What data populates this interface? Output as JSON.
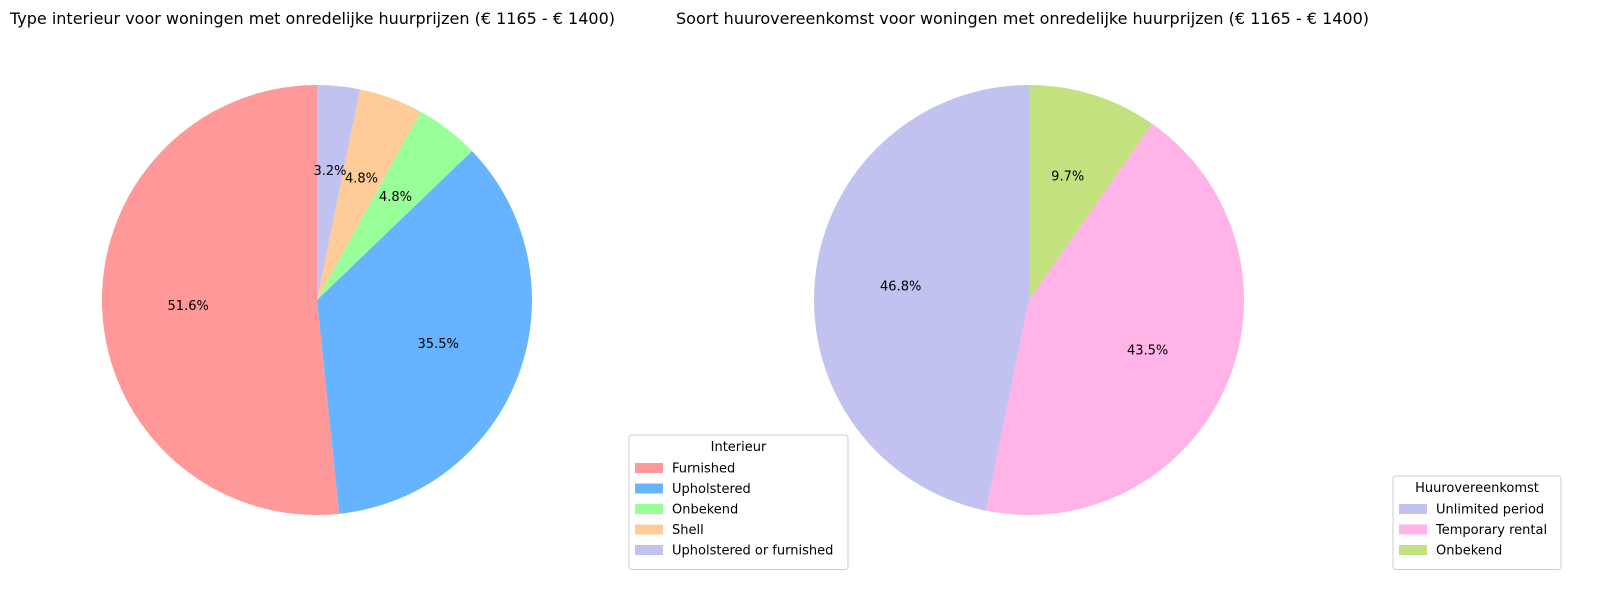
{
  "chart_data": [
    {
      "type": "pie",
      "title": "Type interieur voor woningen met onredelijke huurprijzen (€ 1165 - € 1400)",
      "categories": [
        "Furnished",
        "Upholstered",
        "Onbekend",
        "Shell",
        "Upholstered or furnished"
      ],
      "values": [
        51.6,
        35.5,
        4.8,
        4.8,
        3.2
      ],
      "value_labels": [
        "51.6%",
        "35.5%",
        "4.8%",
        "4.8%",
        "3.2%"
      ],
      "colors": [
        "#ff9999",
        "#66b3ff",
        "#99ff99",
        "#ffcc99",
        "#c2c2f0"
      ],
      "start_angle_deg": 90,
      "direction": "counterclockwise",
      "legend": {
        "title": "Interieur",
        "placement": "lower-right",
        "entries": [
          "Furnished",
          "Upholstered",
          "Onbekend",
          "Shell",
          "Upholstered or furnished"
        ]
      }
    },
    {
      "type": "pie",
      "title": "Soort huurovereenkomst voor woningen met onredelijke huurprijzen (€ 1165 - € 1400)",
      "categories": [
        "Unlimited period",
        "Temporary rental",
        "Onbekend"
      ],
      "values": [
        46.8,
        43.5,
        9.7
      ],
      "value_labels": [
        "46.8%",
        "43.5%",
        "9.7%"
      ],
      "colors": [
        "#c2c2f0",
        "#ffb3e6",
        "#c4e17f"
      ],
      "start_angle_deg": 90,
      "direction": "counterclockwise",
      "legend": {
        "title": "Huurovereenkomst",
        "placement": "lower-right",
        "entries": [
          "Unlimited period",
          "Temporary rental",
          "Onbekend"
        ]
      }
    }
  ]
}
